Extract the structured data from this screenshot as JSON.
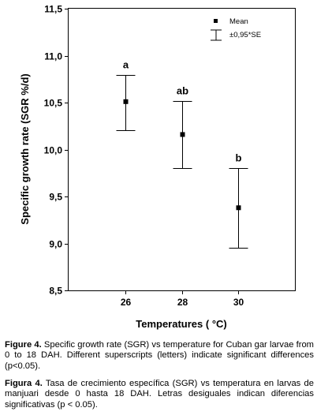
{
  "chart_data": {
    "type": "scatter",
    "categories": [
      "26",
      "28",
      "30"
    ],
    "series": [
      {
        "name": "Mean",
        "values": [
          10.51,
          10.16,
          9.38
        ],
        "error_lower": [
          10.21,
          9.8,
          8.95
        ],
        "error_upper": [
          10.79,
          10.52,
          9.8
        ]
      }
    ],
    "significance_letters": [
      "a",
      "ab",
      "b"
    ],
    "xlabel": "Temperatures ( °C)",
    "ylabel": "Specific growth rate (SGR %/d)",
    "ylim": [
      8.5,
      11.5
    ],
    "y_ticks": [
      8.5,
      9.0,
      9.5,
      10.0,
      10.5,
      11.0,
      11.5
    ],
    "y_tick_labels": [
      "8,5",
      "9,0",
      "9,5",
      "10,0",
      "10,5",
      "11,0",
      "11,5"
    ],
    "grid": false,
    "legend": {
      "placement": "top-right",
      "entries": [
        "Mean",
        "±0,95*SE"
      ]
    }
  },
  "captions": {
    "english_label": "Figure 4.",
    "english_text": " Specific growth rate (SGR) vs temperature for Cuban gar larvae from 0 to 18 DAH. Different superscripts (letters) indicate significant differences (p<0.05).",
    "spanish_label": "Figura 4.",
    "spanish_text": " Tasa de crecimiento específica (SGR) vs temperatura en larvas de manjuari desde 0 hasta 18 DAH. Letras desiguales indican diferencias significativas (p < 0.05)."
  }
}
